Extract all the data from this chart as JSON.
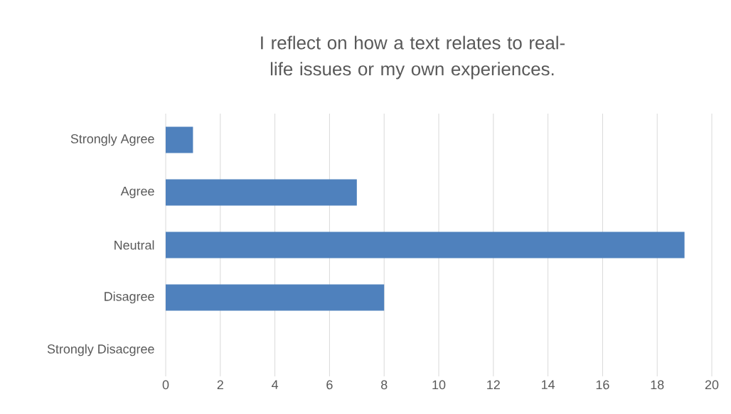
{
  "chart_data": {
    "type": "bar",
    "orientation": "horizontal",
    "title": "I reflect on how a text relates to real-life issues or my own experiences.",
    "categories": [
      "Strongly Agree",
      "Agree",
      "Neutral",
      "Disagree",
      "Strongly Disacgree"
    ],
    "values": [
      1,
      7,
      19,
      8,
      0
    ],
    "color": "#4f81bd",
    "xlim": [
      0,
      20
    ],
    "xticks": [
      0,
      2,
      4,
      6,
      8,
      10,
      12,
      14,
      16,
      18,
      20
    ],
    "grid": "x"
  }
}
